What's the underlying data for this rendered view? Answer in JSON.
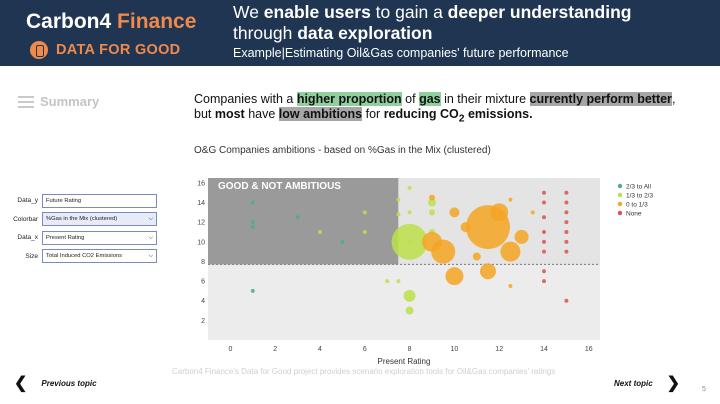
{
  "header": {
    "brand_main": "Carbon4",
    "brand_accent": "Finance",
    "brand_sub": "DATA FOR GOOD",
    "headline": {
      "p1": "We ",
      "b1": "enable users",
      "p2": " to gain a ",
      "b2": "deeper understanding",
      "p3": " through ",
      "b3": "data exploration"
    },
    "subline": "Example|Estimating Oil&Gas companies' future performance"
  },
  "summary_label": "Summary",
  "statement": {
    "t1": "Companies with a ",
    "h1": "higher proportion",
    "t2": " of ",
    "h2": "gas",
    "t3": " in their mixture ",
    "h3": "currently perform better",
    "t4": ",",
    "t5": "but ",
    "b1": "most",
    "t6": " have ",
    "h4": "low ambitions",
    "t7": " for ",
    "b2": "reducing CO",
    "sub": "2",
    "b3": " emissions."
  },
  "chart_title": "O&G Companies ambitions - based on %Gas in the Mix (clustered)",
  "controls": [
    {
      "label": "Data_y",
      "value": "Future Rating"
    },
    {
      "label": "Colorbar",
      "value": "%Gas in the Mix (clustered)"
    },
    {
      "label": "Data_x",
      "value": "Present Rating"
    },
    {
      "label": "Size",
      "value": "Total Induced CO2 Emissions"
    }
  ],
  "nav": {
    "prev": "Previous topic",
    "next": "Next topic"
  },
  "page_number": "5",
  "chart_data": {
    "type": "scatter",
    "xlabel": "Present Rating",
    "ylabel": "",
    "xlim": [
      -1,
      16.5
    ],
    "ylim": [
      0,
      16.5
    ],
    "xticks": [
      0,
      2,
      4,
      6,
      8,
      10,
      12,
      14,
      16
    ],
    "yticks": [
      2,
      4,
      6,
      8,
      10,
      12,
      14,
      16
    ],
    "region_label": "GOOD & NOT AMBITIOUS",
    "threshold_y": 7.7,
    "legend": [
      "2/3 to All",
      "1/3 to 2/3",
      "0 to 1/3",
      "None"
    ],
    "legend_position": "right",
    "colors": {
      "2/3 to All": "#4caf7d",
      "1/3 to 2/3": "#bde04a",
      "0 to 1/3": "#f5a623",
      "None": "#d9534f"
    },
    "series": [
      {
        "name": "2/3 to All",
        "points": [
          [
            1,
            14,
            2
          ],
          [
            1,
            12,
            2
          ],
          [
            1,
            11.5,
            2
          ],
          [
            1,
            5,
            2
          ],
          [
            3,
            12.5,
            2
          ],
          [
            5,
            10,
            2
          ]
        ]
      },
      {
        "name": "1/3 to 2/3",
        "points": [
          [
            4,
            11,
            2
          ],
          [
            6,
            11,
            2
          ],
          [
            6,
            13,
            2
          ],
          [
            7.5,
            12.8,
            2
          ],
          [
            7.5,
            14.3,
            2
          ],
          [
            7.5,
            10.3,
            2
          ],
          [
            8,
            15.5,
            2
          ],
          [
            8,
            13,
            2
          ],
          [
            8,
            10,
            2
          ],
          [
            8,
            4.5,
            6
          ],
          [
            8,
            3,
            4
          ],
          [
            8,
            10,
            18
          ],
          [
            9,
            14,
            4
          ],
          [
            9,
            13,
            3
          ],
          [
            9,
            11,
            3
          ],
          [
            7,
            6,
            2
          ],
          [
            7.5,
            6,
            2
          ]
        ]
      },
      {
        "name": "0 to 1/3",
        "points": [
          [
            11.5,
            11.5,
            22
          ],
          [
            12,
            13,
            9
          ],
          [
            9,
            10,
            10
          ],
          [
            9.5,
            9,
            12
          ],
          [
            10,
            6.5,
            9
          ],
          [
            12.5,
            9,
            10
          ],
          [
            11.5,
            7,
            8
          ],
          [
            13,
            10.5,
            7
          ],
          [
            10.5,
            11.5,
            5
          ],
          [
            10,
            13,
            5
          ],
          [
            9,
            14.5,
            3
          ],
          [
            11,
            8.5,
            4
          ],
          [
            12.5,
            14.3,
            2
          ],
          [
            13.5,
            13,
            2
          ],
          [
            12.5,
            5.5,
            2
          ]
        ]
      },
      {
        "name": "None",
        "points": [
          [
            14,
            15,
            2
          ],
          [
            14,
            14,
            2
          ],
          [
            14,
            12.5,
            2
          ],
          [
            14,
            11,
            2
          ],
          [
            14,
            10,
            2
          ],
          [
            14,
            9,
            2
          ],
          [
            14,
            7,
            2
          ],
          [
            14,
            6,
            2
          ],
          [
            15,
            15,
            2
          ],
          [
            15,
            14,
            2
          ],
          [
            15,
            13,
            2
          ],
          [
            15,
            12,
            2
          ],
          [
            15,
            11,
            2
          ],
          [
            15,
            10,
            2
          ],
          [
            15,
            9,
            2
          ],
          [
            15,
            4,
            2
          ]
        ]
      }
    ]
  },
  "caption": "Carbon4 Finance's Data for Good project provides scenario exploration tools for Oil&Gas companies' ratings"
}
